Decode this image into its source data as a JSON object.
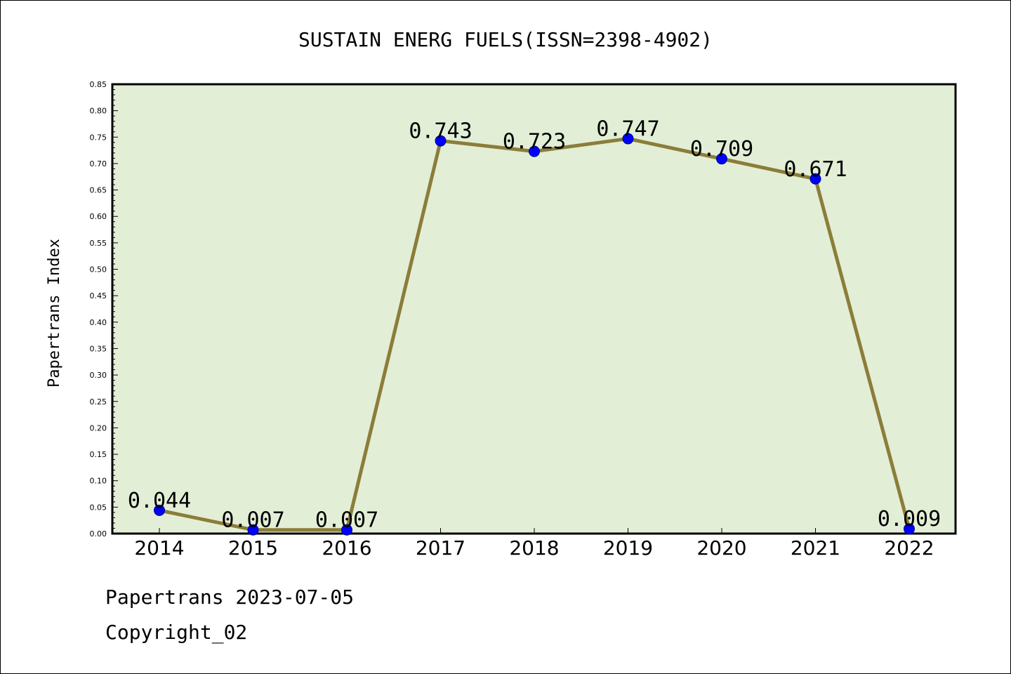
{
  "chart_data": {
    "type": "line",
    "title": "SUSTAIN ENERG FUELS(ISSN=2398-4902)",
    "ylabel": "Papertrans Index",
    "xlabel": "",
    "categories": [
      "2014",
      "2015",
      "2016",
      "2017",
      "2018",
      "2019",
      "2020",
      "2021",
      "2022"
    ],
    "values": [
      0.044,
      0.007,
      0.007,
      0.743,
      0.723,
      0.747,
      0.709,
      0.671,
      0.009
    ],
    "value_labels": [
      "0.044",
      "0.007",
      "0.007",
      "0.743",
      "0.723",
      "0.747",
      "0.709",
      "0.671",
      "0.009"
    ],
    "ylim": [
      0,
      0.85
    ],
    "yticks": [
      "0.00",
      "0.05",
      "0.10",
      "0.15",
      "0.20",
      "0.25",
      "0.30",
      "0.35",
      "0.40",
      "0.45",
      "0.50",
      "0.55",
      "0.60",
      "0.65",
      "0.70",
      "0.75",
      "0.80",
      "0.85"
    ],
    "grid": false,
    "colors": {
      "plot_bg": "#e2efd6",
      "line": "#8b7d3a",
      "marker": "#0000ff"
    }
  },
  "footer": {
    "date_line": "Papertrans 2023-07-05",
    "copyright": "Copyright_02"
  }
}
